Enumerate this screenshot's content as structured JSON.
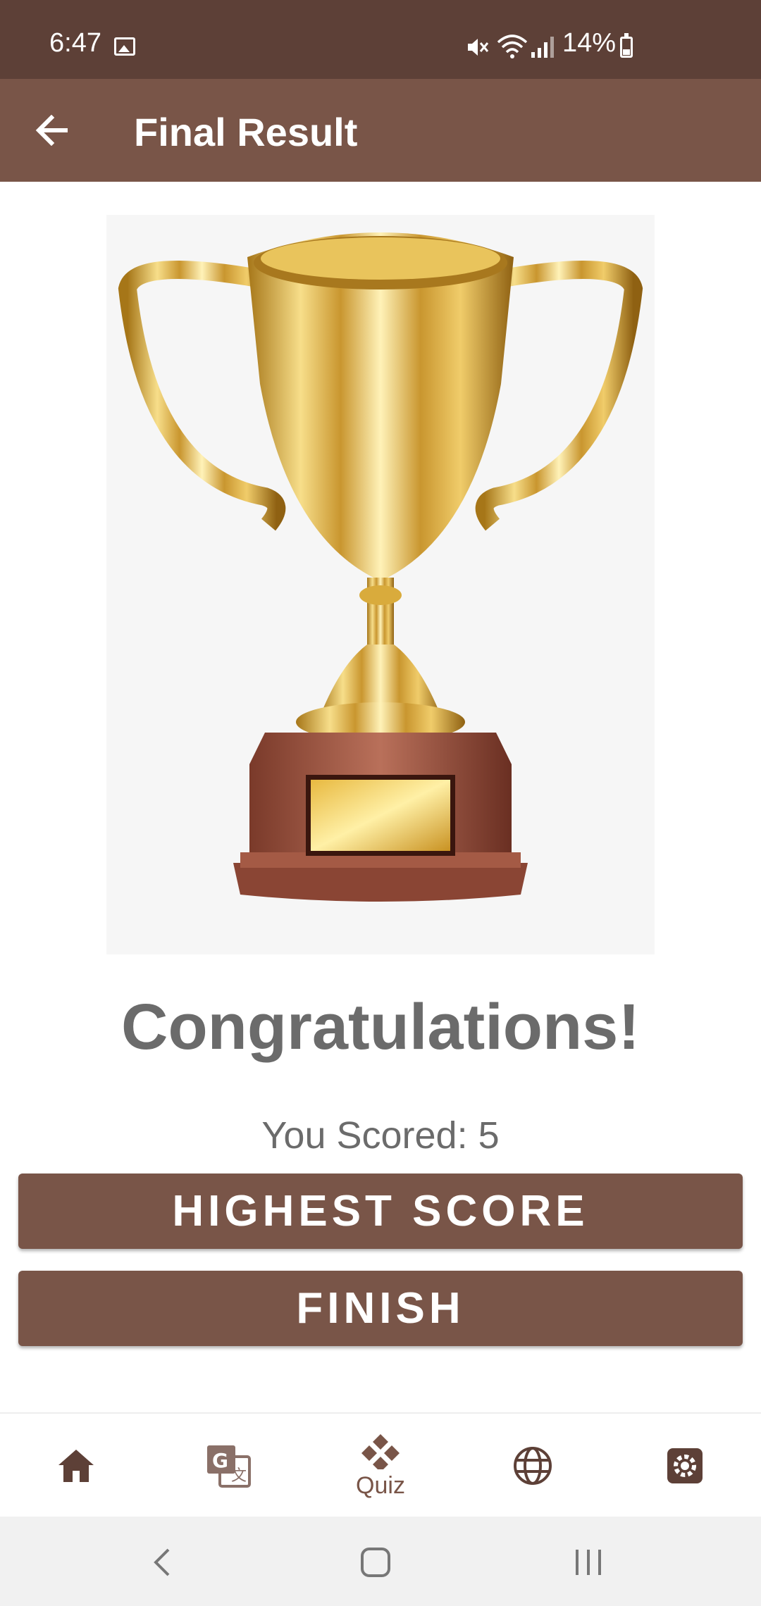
{
  "status_bar": {
    "time": "6:47",
    "battery": "14%"
  },
  "app_bar": {
    "title": "Final Result",
    "back_icon": "arrow-left-icon"
  },
  "result": {
    "image": "trophy-image",
    "headline": "Congratulations!",
    "score_text": "You Scored: 5"
  },
  "actions": {
    "highest_score_label": "HIGHEST SCORE",
    "finish_label": "FINISH"
  },
  "bottom_nav": {
    "items": [
      {
        "icon": "home-icon",
        "label": ""
      },
      {
        "icon": "translate-icon",
        "label": ""
      },
      {
        "icon": "quiz-icon",
        "label": "Quiz"
      },
      {
        "icon": "globe-icon",
        "label": ""
      },
      {
        "icon": "settings-icon",
        "label": ""
      }
    ],
    "active_index": 2
  },
  "colors": {
    "status_bar": "#5d4037",
    "primary": "#795548",
    "text_gray": "#6b6b6b"
  }
}
